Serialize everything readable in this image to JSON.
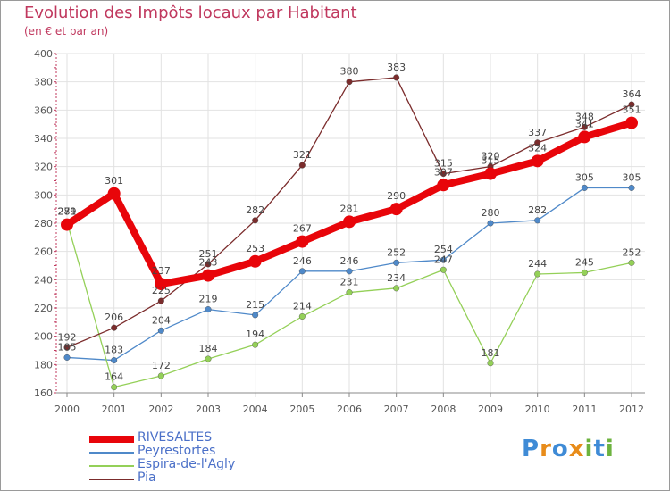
{
  "title": "Evolution des Impôts locaux par Habitant",
  "subtitle": "(en € et par an)",
  "logo": {
    "text": "Proxiti",
    "letters": [
      "P",
      "r",
      "o",
      "x",
      "i",
      "t",
      "i"
    ],
    "colors": [
      "#3f8bd6",
      "#e88c1a",
      "#3f8bd6",
      "#e88c1a",
      "#6db33f",
      "#3f8bd6",
      "#6db33f"
    ]
  },
  "chart_data": {
    "type": "line",
    "title": "Evolution des Impôts locaux par Habitant",
    "ylabel": "(en € et par an)",
    "xlabel": "",
    "ylim": [
      160,
      400
    ],
    "yticks": [
      160,
      180,
      200,
      220,
      240,
      260,
      280,
      300,
      320,
      340,
      360,
      380,
      400
    ],
    "categories": [
      "2000",
      "2001",
      "2002",
      "2003",
      "2004",
      "2005",
      "2006",
      "2007",
      "2008",
      "2009",
      "2010",
      "2011",
      "2012"
    ],
    "grid": true,
    "legend_position": "bottom-left",
    "series": [
      {
        "name": "RIVESALTES",
        "color": "#e8050a",
        "thick": true,
        "values": [
          279,
          301,
          237,
          243,
          253,
          267,
          281,
          290,
          307,
          315,
          324,
          341,
          351
        ]
      },
      {
        "name": "Peyrestortes",
        "color": "#4f89c9",
        "thick": false,
        "values": [
          185,
          183,
          204,
          219,
          215,
          246,
          246,
          252,
          254,
          280,
          282,
          305,
          305
        ]
      },
      {
        "name": "Espira-de-l'Agly",
        "color": "#94d058",
        "thick": false,
        "values": [
          281,
          164,
          172,
          184,
          194,
          214,
          231,
          234,
          247,
          181,
          244,
          245,
          252
        ]
      },
      {
        "name": "Pia",
        "color": "#7b2c2c",
        "thick": false,
        "values": [
          192,
          206,
          225,
          251,
          282,
          321,
          380,
          383,
          315,
          320,
          337,
          348,
          364
        ]
      }
    ]
  }
}
